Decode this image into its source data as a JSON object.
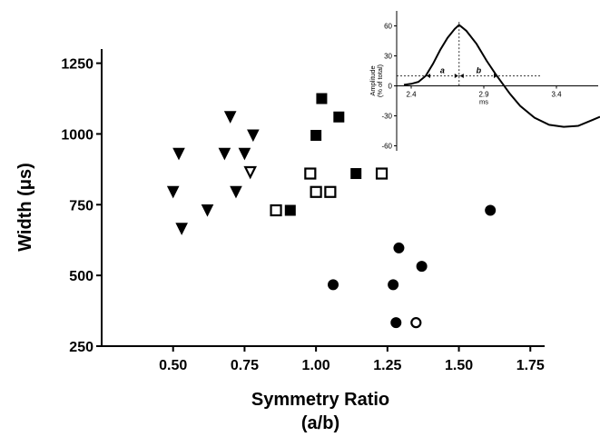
{
  "chart_data": [
    {
      "type": "scatter",
      "title": "",
      "xlabel": "Symmetry Ratio",
      "xlabel_sub": "(a/b)",
      "ylabel": "Width (μs)",
      "xlim": [
        0.25,
        1.8
      ],
      "ylim": [
        250,
        1300
      ],
      "xticks": [
        0.5,
        0.75,
        1.0,
        1.25,
        1.5,
        1.75
      ],
      "xtick_labels": [
        "0.50",
        "0.75",
        "1.00",
        "1.25",
        "1.50",
        "1.75"
      ],
      "yticks": [
        250,
        500,
        750,
        1000,
        1250
      ],
      "ytick_labels": [
        "250",
        "500",
        "750",
        "1000",
        "1250"
      ],
      "grid": false,
      "legend": "none",
      "series": [
        {
          "marker": "triangle-down-filled",
          "color": "#000000",
          "points": [
            [
              0.52,
              930
            ],
            [
              0.5,
              795
            ],
            [
              0.53,
              665
            ],
            [
              0.62,
              730
            ],
            [
              0.68,
              930
            ],
            [
              0.7,
              1060
            ],
            [
              0.72,
              795
            ],
            [
              0.75,
              930
            ],
            [
              0.78,
              995
            ]
          ]
        },
        {
          "marker": "triangle-down-open",
          "color": "#000000",
          "points": [
            [
              0.77,
              865
            ]
          ]
        },
        {
          "marker": "square-filled",
          "color": "#000000",
          "points": [
            [
              1.02,
              1125
            ],
            [
              1.08,
              1060
            ],
            [
              1.0,
              995
            ],
            [
              1.14,
              860
            ],
            [
              0.91,
              730
            ]
          ]
        },
        {
          "marker": "square-open",
          "color": "#000000",
          "points": [
            [
              0.98,
              860
            ],
            [
              1.0,
              795
            ],
            [
              1.05,
              795
            ],
            [
              1.23,
              860
            ],
            [
              0.86,
              730
            ]
          ]
        },
        {
          "marker": "circle-filled",
          "color": "#000000",
          "points": [
            [
              1.61,
              730
            ],
            [
              1.29,
              597
            ],
            [
              1.37,
              532
            ],
            [
              1.06,
              467
            ],
            [
              1.27,
              467
            ],
            [
              1.28,
              333
            ]
          ]
        },
        {
          "marker": "circle-open",
          "color": "#000000",
          "points": [
            [
              1.35,
              333
            ]
          ]
        }
      ]
    },
    {
      "type": "line",
      "title": "",
      "xlabel": "ms",
      "ylabel": "Amplitude",
      "ylabel_sub": "(% of total)",
      "xlim": [
        2.3,
        3.7
      ],
      "ylim": [
        -65,
        75
      ],
      "xticks": [
        2.4,
        2.9,
        3.4
      ],
      "xtick_labels": [
        "2.4",
        "2.9",
        "3.4"
      ],
      "yticks": [
        -60,
        -30,
        0,
        30,
        60
      ],
      "ytick_labels": [
        "-60",
        "-30",
        "0",
        "30",
        "60"
      ],
      "annotations": [
        "a",
        "b"
      ],
      "reference": {
        "peak_x": 2.73,
        "threshold_y": 10,
        "threshold_x_left": 2.5,
        "threshold_x_right": 3.0
      },
      "series": [
        {
          "color": "#000000",
          "x": [
            2.35,
            2.4,
            2.45,
            2.5,
            2.55,
            2.6,
            2.65,
            2.7,
            2.73,
            2.78,
            2.85,
            2.92,
            2.98,
            3.03,
            3.08,
            3.15,
            3.25,
            3.35,
            3.45,
            3.55,
            3.65,
            3.7
          ],
          "y": [
            1,
            2,
            4,
            10,
            22,
            36,
            48,
            57,
            61,
            55,
            42,
            25,
            12,
            2,
            -8,
            -20,
            -32,
            -39,
            -41,
            -40,
            -34,
            -31
          ]
        }
      ]
    }
  ]
}
